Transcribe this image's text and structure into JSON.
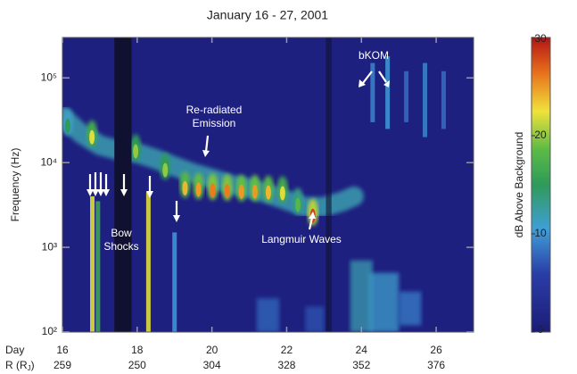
{
  "chart_data": {
    "type": "spectrogram",
    "title": "January 16 - 27,  2001",
    "y_label": "Frequency (Hz)",
    "log_y": true,
    "xlim": [
      16,
      27
    ],
    "ylim": [
      100,
      300000
    ],
    "xticks": [
      16,
      18,
      20,
      22,
      24,
      26
    ],
    "x_row_label": "Day",
    "r_row_label": {
      "main": "R (R",
      "sub": "J",
      "end": ")"
    },
    "r_values": [
      259,
      250,
      304,
      328,
      352,
      376
    ],
    "yticks": [
      {
        "value": 100,
        "label": "10²"
      },
      {
        "value": 1000,
        "label": "10³"
      },
      {
        "value": 10000,
        "label": "10⁴"
      },
      {
        "value": 100000,
        "label": "10⁵"
      }
    ],
    "colorbar_label": "dB Above Background",
    "clim": [
      0,
      30
    ],
    "cticks": [
      0,
      10,
      20,
      30
    ],
    "data_gaps": {
      "x0": [
        17.39,
        23.05
      ],
      "x1": [
        17.85,
        23.2
      ]
    },
    "continuum": {
      "x": [
        16,
        16.5,
        17,
        17.5,
        18,
        18.5,
        19,
        19.5,
        20,
        20.5,
        21,
        21.5,
        22,
        22.5,
        23,
        23.5,
        23.8
      ],
      "y": [
        35000,
        22000,
        16000,
        14000,
        13000,
        11000,
        9000,
        7500,
        6500,
        5500,
        5000,
        4300,
        3600,
        3000,
        3000,
        3500,
        4000
      ],
      "db": [
        12,
        11,
        10,
        10,
        10,
        10,
        11,
        12,
        12,
        12,
        11,
        11,
        10,
        9,
        9,
        8,
        7
      ]
    },
    "blobs": {
      "x": [
        16.14,
        16.79,
        17.96,
        18.75,
        19.28,
        19.64,
        20.02,
        20.41,
        20.79,
        21.15,
        21.51,
        21.89,
        22.3,
        22.7
      ],
      "y": [
        30000,
        22000,
        15000,
        9000,
        5500,
        5300,
        5200,
        5100,
        5000,
        5000,
        4900,
        4800,
        3500,
        2600
      ],
      "db": [
        15,
        22,
        20,
        20,
        24,
        25,
        26,
        26,
        25,
        25,
        24,
        22,
        18,
        28
      ]
    },
    "streaks": {
      "x": [
        16.8,
        16.95,
        18.3,
        19.0,
        24.3,
        24.7,
        25.2,
        25.7,
        26.2
      ],
      "y0": [
        100,
        100,
        100,
        100,
        30000,
        25000,
        30000,
        20000,
        25000
      ],
      "y1": [
        4000,
        3500,
        4500,
        1500,
        150000,
        180000,
        120000,
        150000,
        120000
      ],
      "db": [
        22,
        16,
        22,
        10,
        9,
        10,
        8,
        9,
        8
      ]
    },
    "patches": {
      "x0": [
        23.7,
        24.2,
        25.0,
        21.2,
        22.5
      ],
      "x1": [
        24.3,
        25.0,
        25.6,
        21.8,
        23.0
      ],
      "y0": [
        100,
        100,
        120,
        100,
        100
      ],
      "y1": [
        700,
        500,
        300,
        250,
        200
      ],
      "db": [
        12,
        11,
        9,
        8,
        7
      ]
    },
    "annotations": [
      {
        "lines": [
          "Bow",
          "Shocks"
        ]
      },
      {
        "lines": [
          "Re-radiated",
          "Emission"
        ]
      },
      {
        "lines": [
          "Langmuir Waves"
        ]
      },
      {
        "lines": [
          "bKOM"
        ]
      }
    ]
  }
}
